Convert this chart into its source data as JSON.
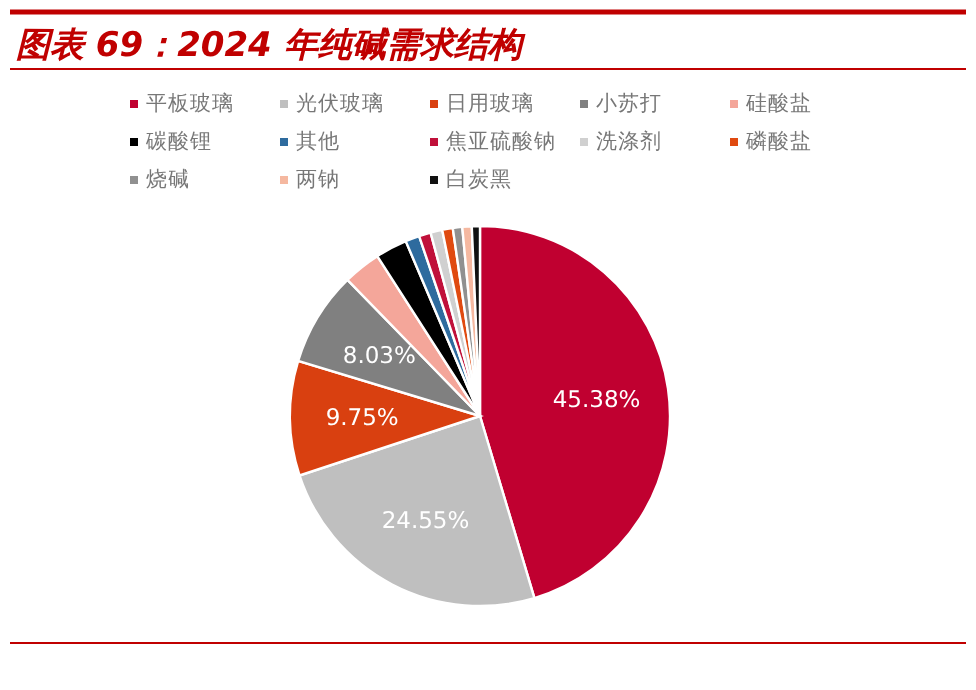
{
  "chart_data": {
    "type": "pie",
    "title": "图表 69：2024 年纯碱需求结构",
    "categories": [
      "平板玻璃",
      "光伏玻璃",
      "日用玻璃",
      "小苏打",
      "硅酸盐",
      "碳酸锂",
      "其他",
      "焦亚硫酸钠",
      "洗涤剂",
      "磷酸盐",
      "烧碱",
      "两钠",
      "白炭黑"
    ],
    "values": [
      45.38,
      24.55,
      9.75,
      8.03,
      3.2,
      2.7,
      1.2,
      1.0,
      1.0,
      0.9,
      0.8,
      0.8,
      0.69
    ],
    "colors": [
      "#c00030",
      "#bfbfbf",
      "#d94010",
      "#808080",
      "#f4a69a",
      "#000000",
      "#2e6b9e",
      "#c0103a",
      "#d0d0d0",
      "#e04a10",
      "#909090",
      "#f5b8a0",
      "#111111"
    ],
    "value_labels": [
      "45.38%",
      "24.55%",
      "9.75%",
      "8.03%",
      null,
      null,
      null,
      null,
      null,
      null,
      null,
      null,
      null
    ],
    "legend": "top"
  }
}
